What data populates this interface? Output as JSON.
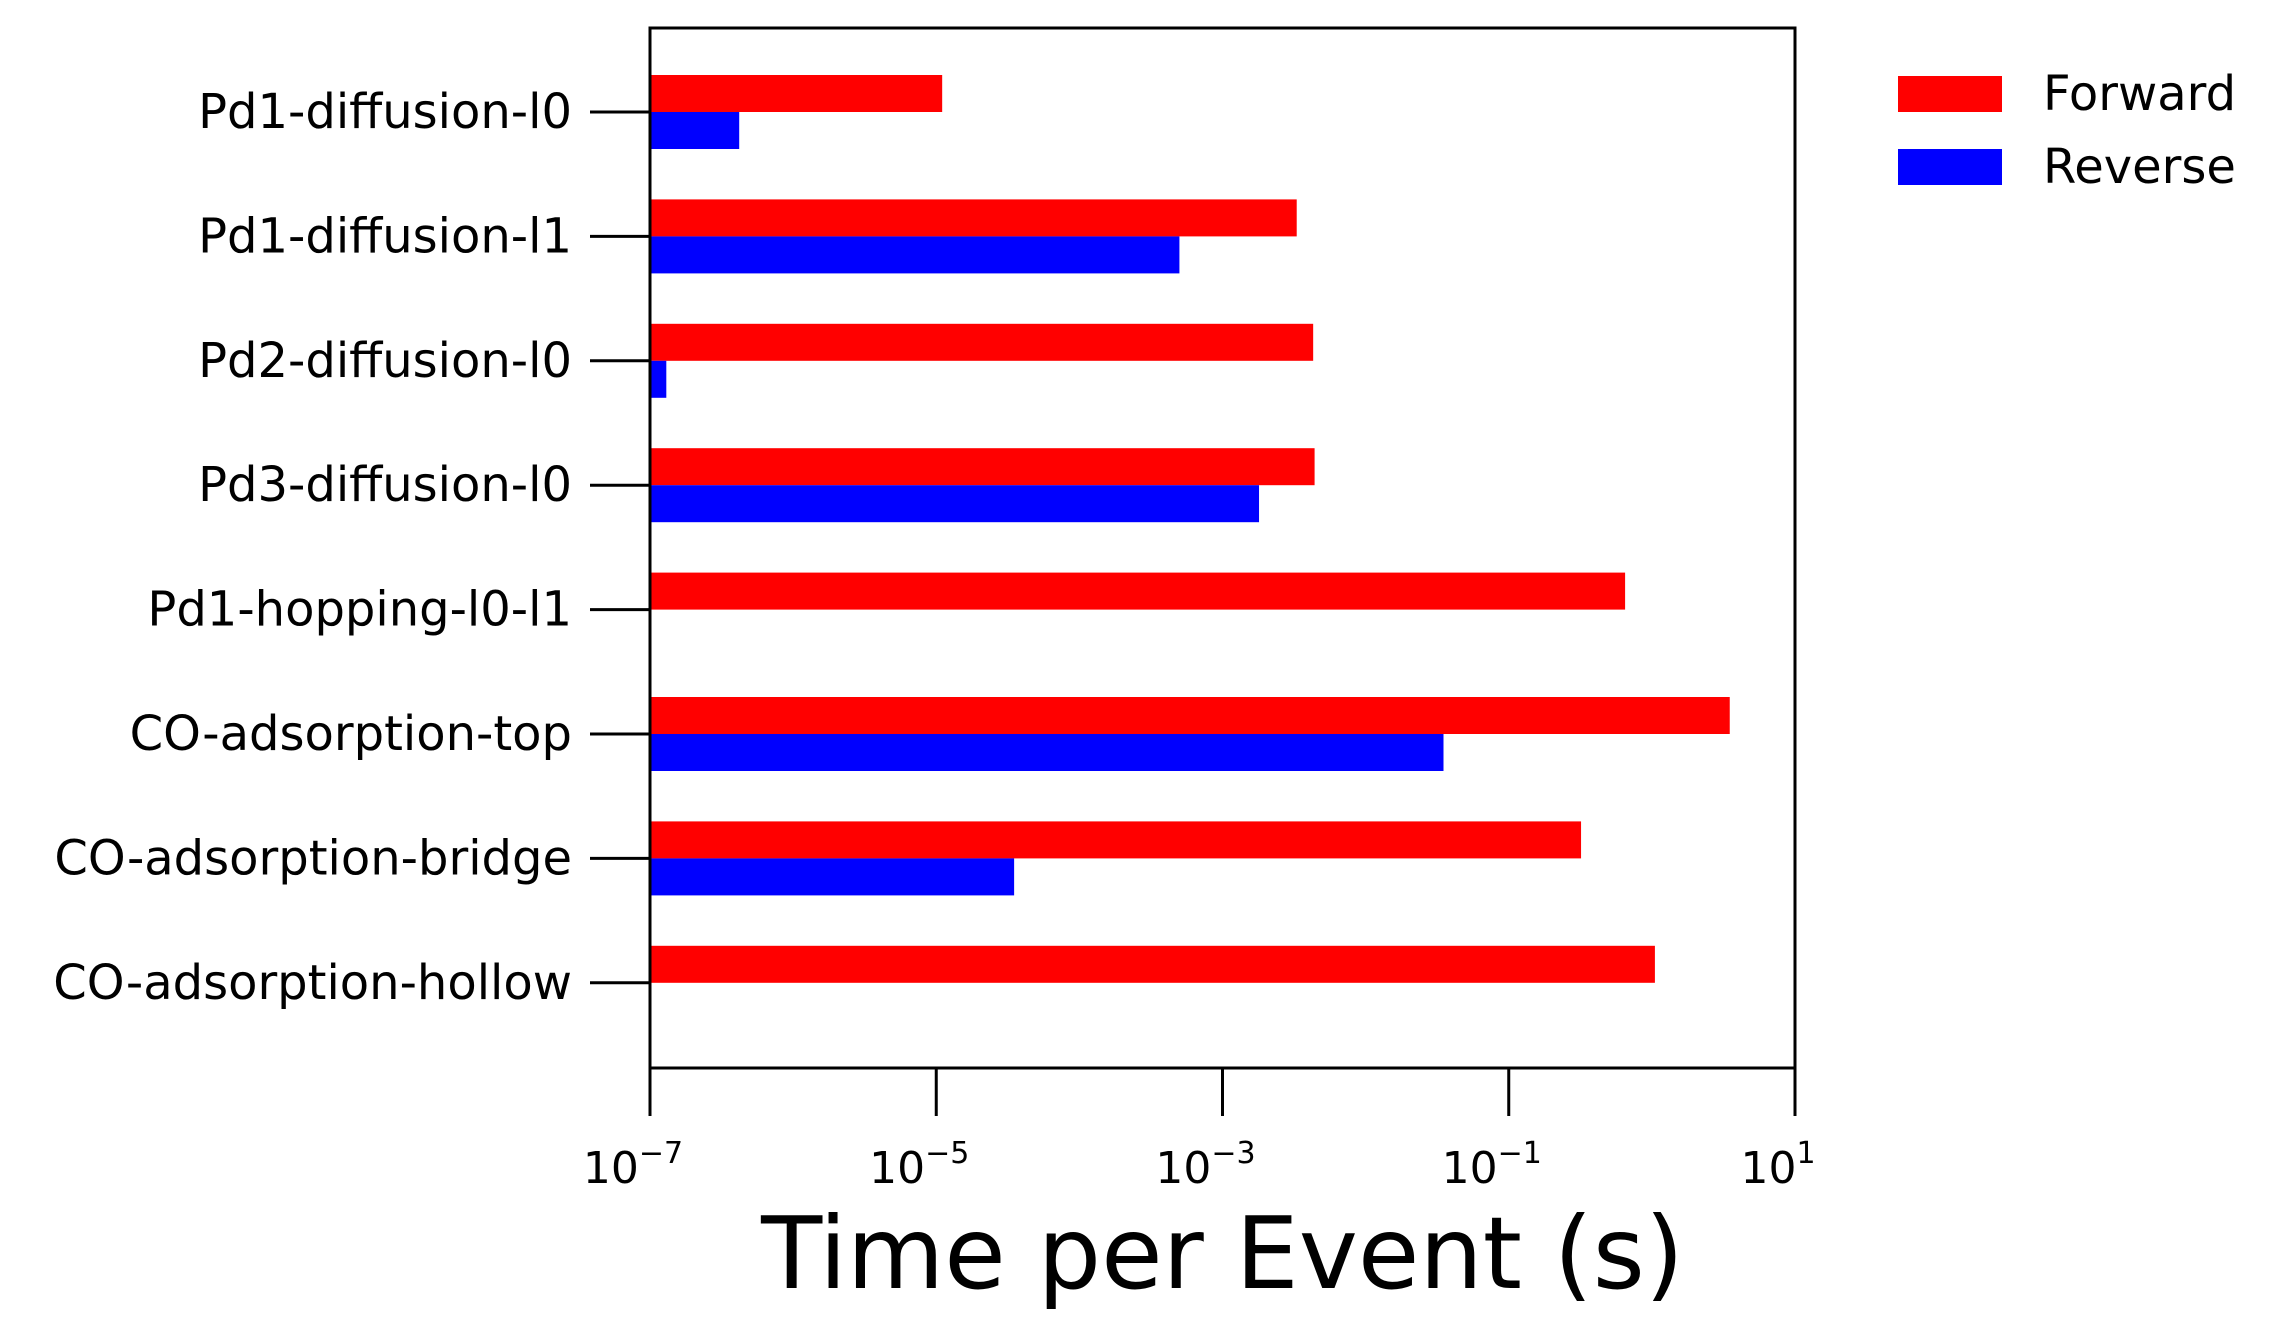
{
  "chart_data": {
    "type": "bar",
    "orientation": "horizontal",
    "x_scale": "log",
    "xlabel": "Time per Event (s)",
    "ylabel": "",
    "title": "",
    "xlim": [
      1e-07,
      10
    ],
    "x_ticks": [
      {
        "value": 1e-07,
        "base": "10",
        "exp": "−7"
      },
      {
        "value": 1e-05,
        "base": "10",
        "exp": "−5"
      },
      {
        "value": 0.001,
        "base": "10",
        "exp": "−3"
      },
      {
        "value": 0.1,
        "base": "10",
        "exp": "−1"
      },
      {
        "value": 10,
        "base": "10",
        "exp": "1"
      }
    ],
    "categories": [
      "Pd1-diffusion-l0",
      "Pd1-diffusion-l1",
      "Pd2-diffusion-l0",
      "Pd3-diffusion-l0",
      "Pd1-hopping-l0-l1",
      "CO-adsorption-top",
      "CO-adsorption-bridge",
      "CO-adsorption-hollow"
    ],
    "series": [
      {
        "name": "Forward",
        "color": "#ff0000",
        "values": [
          1.1e-05,
          0.0033,
          0.0043,
          0.0044,
          0.65,
          3.5,
          0.32,
          1.05
        ]
      },
      {
        "name": "Reverse",
        "color": "#0000ff",
        "values": [
          4.2e-07,
          0.0005,
          1.3e-07,
          0.0018,
          null,
          0.035,
          3.5e-05,
          null
        ]
      }
    ],
    "legend": "upper-right-outside",
    "grid": false
  }
}
